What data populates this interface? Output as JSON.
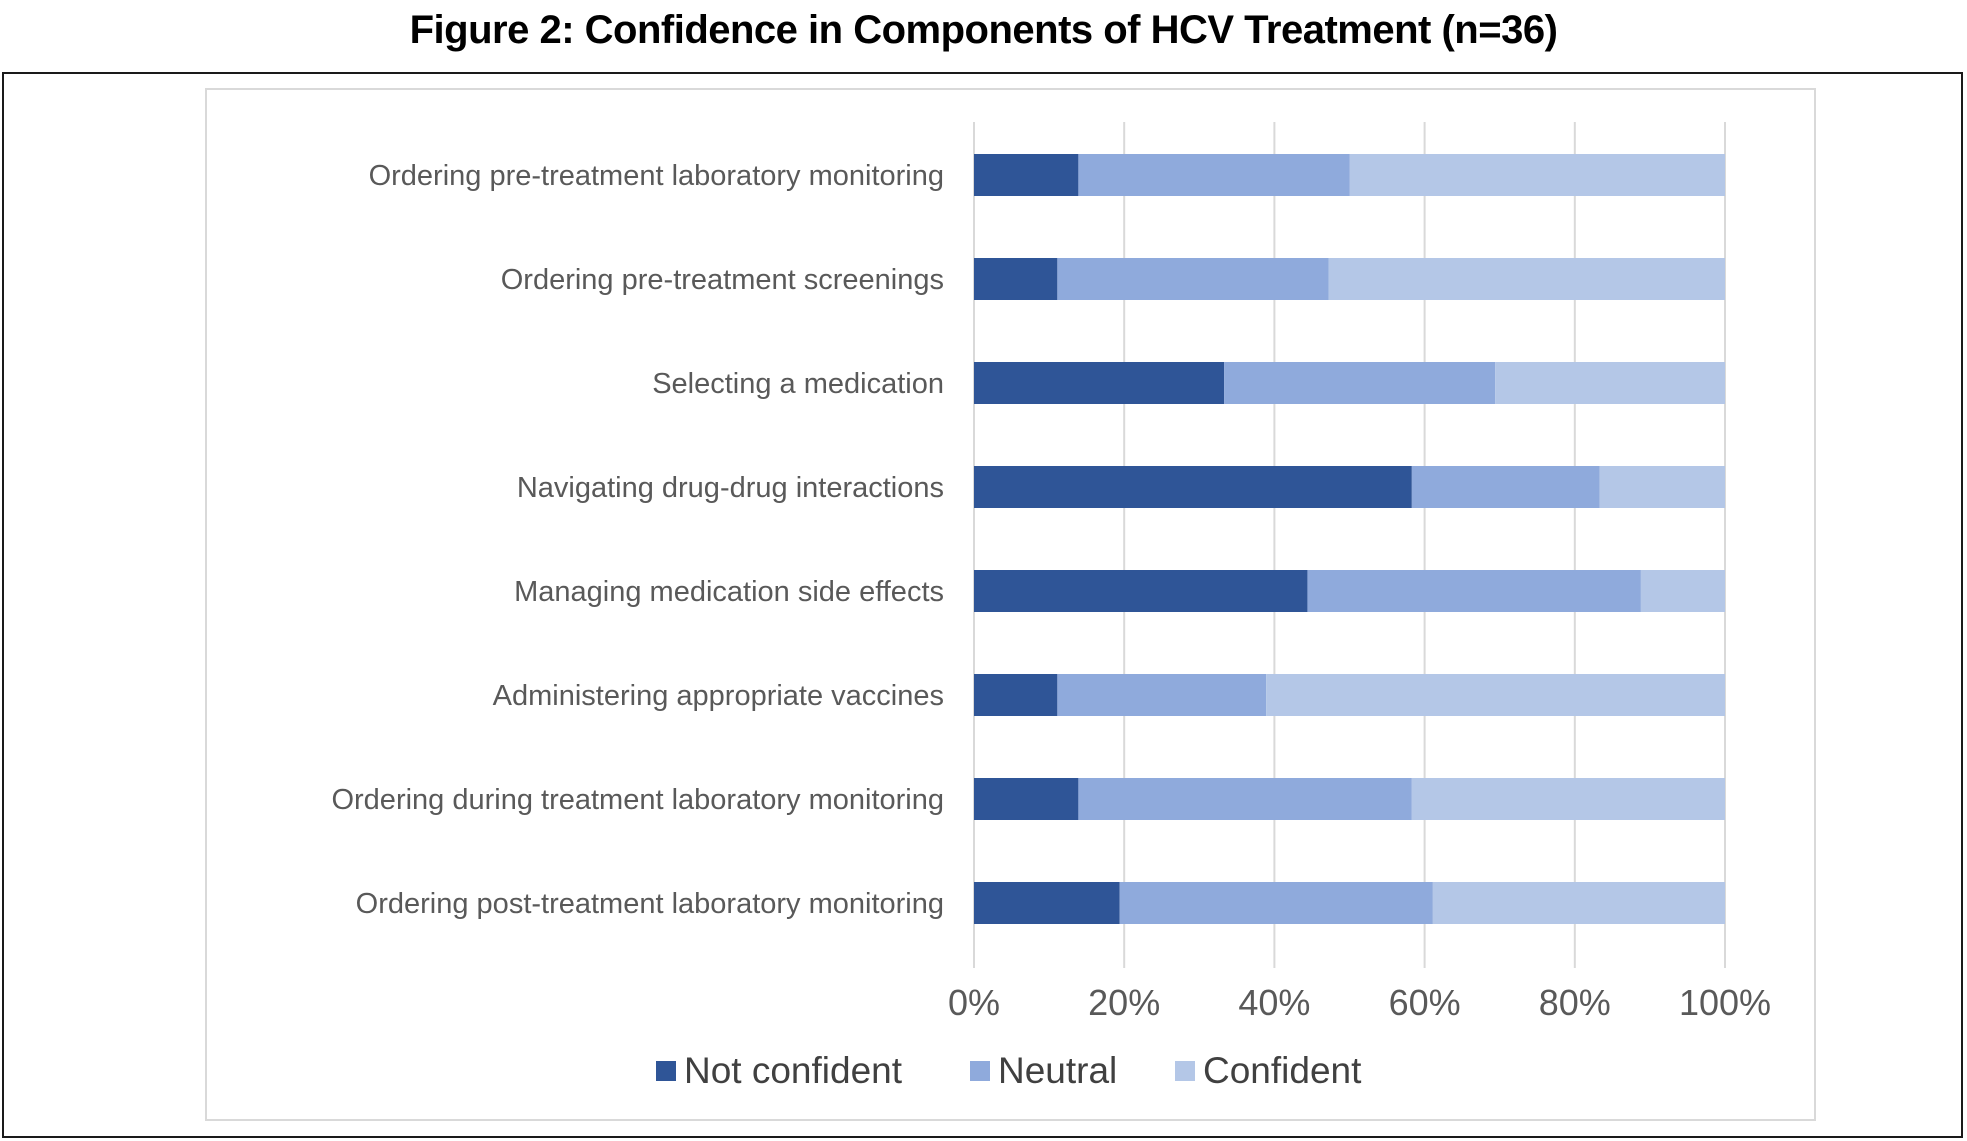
{
  "title": "Figure 2: Confidence in Components of HCV Treatment (n=36)",
  "colors": {
    "Not confident": "#2f5597",
    "Neutral": "#8faadc",
    "Confident": "#b4c7e7",
    "gridline": "#d9d9d9",
    "text": "#595959"
  },
  "chart_data": {
    "type": "bar",
    "orientation": "horizontal",
    "stacked": "percent",
    "categories": [
      "Ordering pre-treatment laboratory monitoring",
      "Ordering pre-treatment screenings",
      "Selecting a medication",
      "Navigating drug-drug interactions",
      "Managing medication side effects",
      "Administering appropriate vaccines",
      "Ordering during treatment laboratory monitoring",
      "Ordering post-treatment laboratory monitoring"
    ],
    "series": [
      {
        "name": "Not confident",
        "values": [
          13.9,
          11.1,
          33.3,
          58.3,
          44.4,
          11.1,
          13.9,
          19.4
        ]
      },
      {
        "name": "Neutral",
        "values": [
          36.1,
          36.1,
          36.1,
          25.0,
          44.4,
          27.8,
          44.4,
          41.7
        ]
      },
      {
        "name": "Confident",
        "values": [
          50.0,
          52.8,
          30.6,
          16.7,
          11.2,
          61.1,
          41.7,
          38.9
        ]
      }
    ],
    "xlim": [
      0,
      100
    ],
    "xticks": [
      "0%",
      "20%",
      "40%",
      "60%",
      "80%",
      "100%"
    ],
    "grid": true,
    "legend_position": "bottom",
    "title": "Figure 2: Confidence in Components of HCV Treatment (n=36)",
    "xlabel": "",
    "ylabel": ""
  }
}
